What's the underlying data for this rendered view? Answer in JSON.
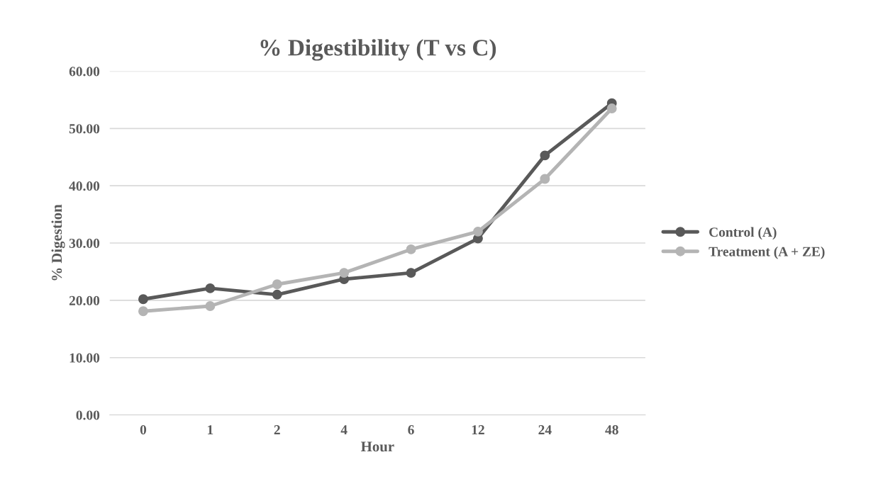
{
  "chart_data": {
    "type": "line",
    "title": "% Digestibility (T vs C)",
    "xlabel": "Hour",
    "ylabel": "% Digestion",
    "categories": [
      "0",
      "1",
      "2",
      "4",
      "6",
      "12",
      "24",
      "48"
    ],
    "series": [
      {
        "name": "Control (A)",
        "color": "#595959",
        "values": [
          20.2,
          22.1,
          21.0,
          23.7,
          24.8,
          30.8,
          45.3,
          54.4
        ]
      },
      {
        "name": "Treatment (A + ZE)",
        "color": "#b4b4b4",
        "values": [
          18.1,
          19.0,
          22.8,
          24.8,
          28.9,
          32.0,
          41.2,
          53.5
        ]
      }
    ],
    "ylim": [
      0,
      60
    ],
    "yticks": [
      {
        "value": 0,
        "label": "0.00"
      },
      {
        "value": 10,
        "label": "10.00"
      },
      {
        "value": 20,
        "label": "20.00"
      },
      {
        "value": 30,
        "label": "30.00"
      },
      {
        "value": 40,
        "label": "40.00"
      },
      {
        "value": 50,
        "label": "50.00"
      },
      {
        "value": 60,
        "label": "60.00"
      }
    ],
    "grid": "y",
    "legend": "right",
    "marker": "circle",
    "line_style": "solid"
  }
}
